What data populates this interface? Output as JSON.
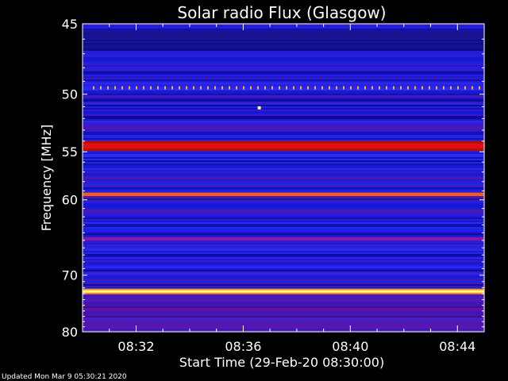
{
  "chart_data": {
    "type": "heatmap",
    "title": "Solar radio Flux (Glasgow)",
    "xlabel": "Start Time (29-Feb-20 08:30:00)",
    "ylabel": "Frequency [MHz]",
    "x_ticks": [
      "08:32",
      "08:36",
      "08:40",
      "08:44"
    ],
    "x_tick_minutes": [
      2,
      6,
      10,
      14
    ],
    "x_range_minutes": [
      0,
      15
    ],
    "y_ticks": [
      45,
      50,
      55,
      60,
      70,
      80
    ],
    "y_range": [
      45,
      80
    ],
    "y_scale": "reciprocal",
    "features": [
      {
        "freq_start": 49.4,
        "freq_end": 49.6,
        "level": "dotted-emission"
      },
      {
        "freq_start": 54.2,
        "freq_end": 54.7,
        "level": "high"
      },
      {
        "freq_start": 59.2,
        "freq_end": 59.6,
        "level": "very-high"
      },
      {
        "freq_start": 64.6,
        "freq_end": 65.0,
        "level": "medium"
      },
      {
        "freq_start": 72.4,
        "freq_end": 72.8,
        "level": "saturated"
      }
    ],
    "colors": {
      "background": "#000000",
      "low": "#1e1ee6",
      "mid": "#8b1aa0",
      "high": "#e01010",
      "very_high": "#ff5a1e",
      "saturated": "#ffff80"
    }
  },
  "footer": "Updated Mon Mar  9 05:30:21 2020"
}
